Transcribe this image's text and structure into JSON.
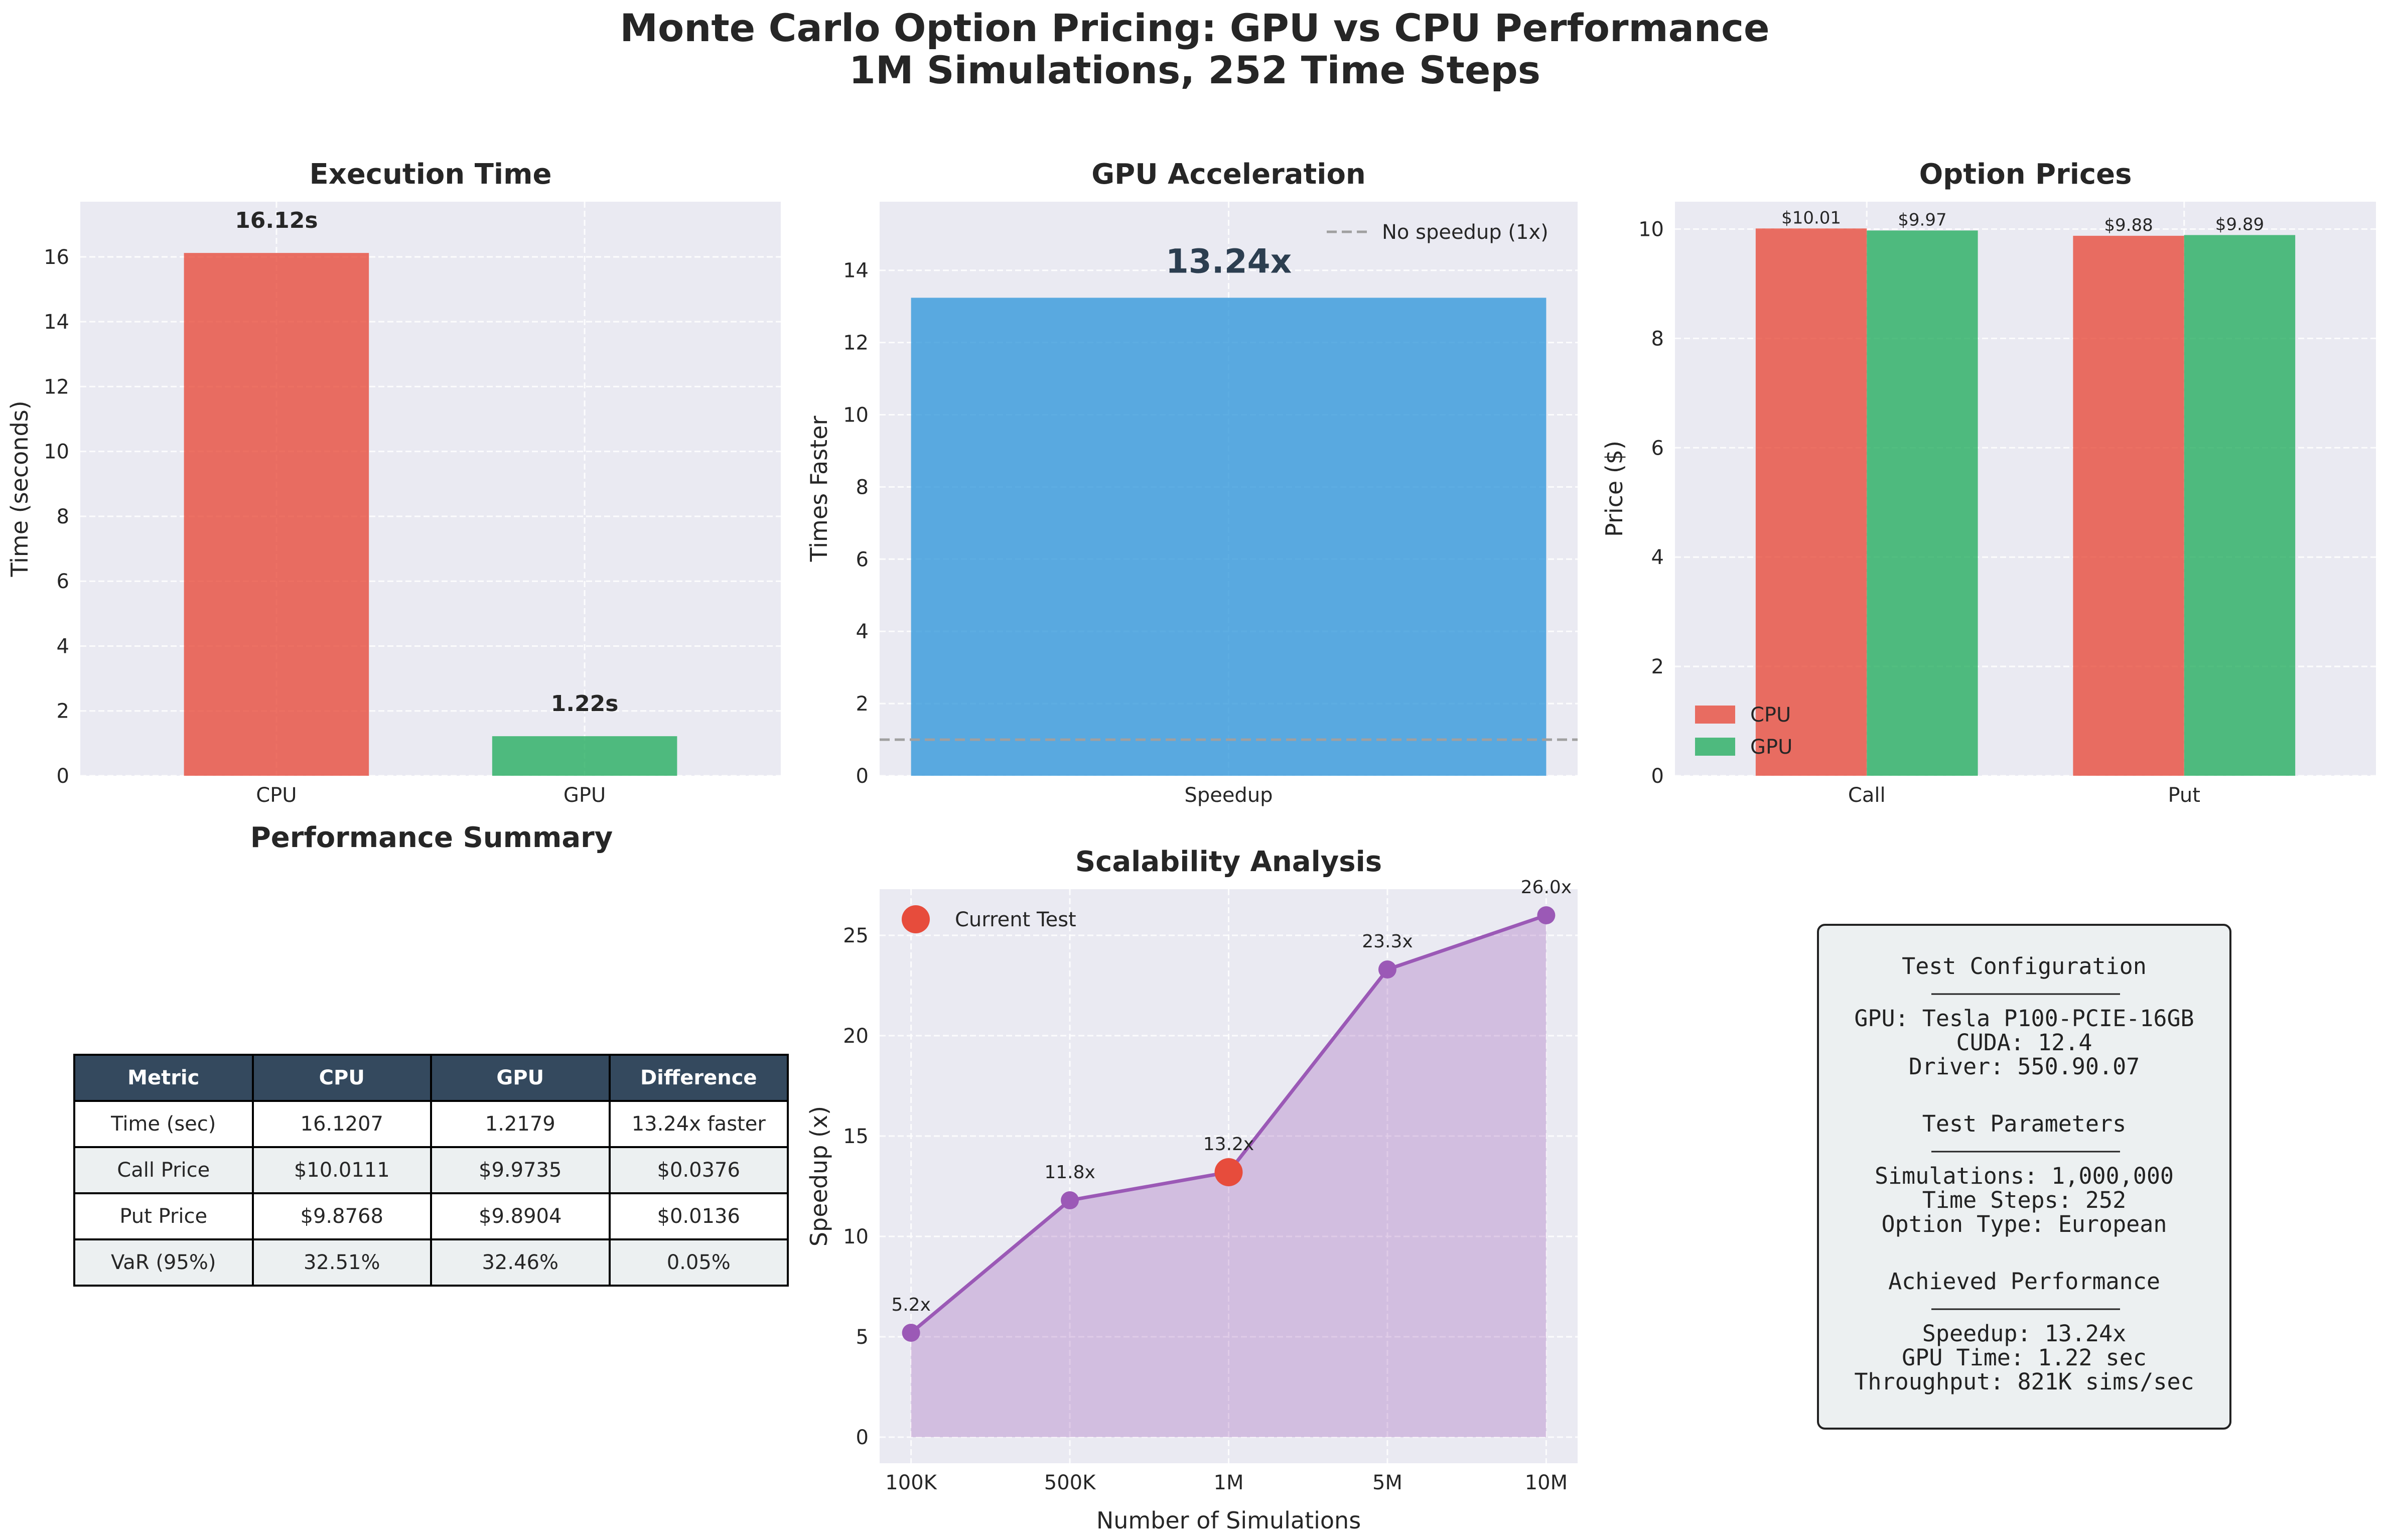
{
  "figure": {
    "title_line1": "Monte Carlo Option Pricing: GPU vs CPU Performance",
    "title_line2": "1M Simulations, 252 Time Steps"
  },
  "colors": {
    "cpu": "#e74c3c",
    "gpu": "#27ae60",
    "speedup": "#3498db",
    "scalability": "#9b59b6",
    "current": "#e74c3c",
    "panel_bg": "#eaeaf2",
    "table_header": "#34495e"
  },
  "chart_data": [
    {
      "id": "execution_time",
      "type": "bar",
      "title": "Execution Time",
      "xlabel": "",
      "ylabel": "Time (seconds)",
      "categories": [
        "CPU",
        "GPU"
      ],
      "values": [
        16.12,
        1.22
      ],
      "data_labels": [
        "16.12s",
        "1.22s"
      ],
      "colors": [
        "#e74c3c",
        "#27ae60"
      ],
      "ylim": [
        0,
        17.7
      ],
      "yticks": [
        0,
        2,
        4,
        6,
        8,
        10,
        12,
        14,
        16
      ],
      "grid": true
    },
    {
      "id": "gpu_acceleration",
      "type": "bar",
      "title": "GPU Acceleration",
      "xlabel": "",
      "ylabel": "Times Faster",
      "categories": [
        "Speedup"
      ],
      "values": [
        13.24
      ],
      "data_labels": [
        "13.24x"
      ],
      "reference_line": {
        "y": 1,
        "label": "No speedup (1x)"
      },
      "ylim": [
        0,
        15.9
      ],
      "yticks": [
        0,
        2,
        4,
        6,
        8,
        10,
        12,
        14
      ],
      "legend": "top-right",
      "grid": true
    },
    {
      "id": "option_prices",
      "type": "bar",
      "title": "Option Prices",
      "xlabel": "",
      "ylabel": "Price ($)",
      "categories": [
        "Call",
        "Put"
      ],
      "series": [
        {
          "name": "CPU",
          "values": [
            10.0111,
            9.8768
          ],
          "labels": [
            "$10.01",
            "$9.88"
          ]
        },
        {
          "name": "GPU",
          "values": [
            9.9735,
            9.8904
          ],
          "labels": [
            "$9.97",
            "$9.89"
          ]
        }
      ],
      "ylim": [
        0,
        10.5
      ],
      "yticks": [
        0,
        2,
        4,
        6,
        8,
        10
      ],
      "legend": "lower-left",
      "grid": true
    },
    {
      "id": "scalability",
      "type": "line",
      "title": "Scalability Analysis",
      "xlabel": "Number of Simulations",
      "ylabel": "Speedup (x)",
      "categories": [
        "100K",
        "500K",
        "1M",
        "5M",
        "10M"
      ],
      "values": [
        5.2,
        11.8,
        13.2,
        23.3,
        26.0
      ],
      "data_labels": [
        "5.2x",
        "11.8x",
        "13.2x",
        "23.3x",
        "26.0x"
      ],
      "highlight": {
        "index": 2,
        "name": "Current Test"
      },
      "ylim": [
        -1.3,
        27.3
      ],
      "yticks": [
        0,
        5,
        10,
        15,
        20,
        25
      ],
      "legend": "top-left",
      "grid": true
    }
  ],
  "summary": {
    "title": "Performance Summary",
    "headers": [
      "Metric",
      "CPU",
      "GPU",
      "Difference"
    ],
    "rows": [
      [
        "Time (sec)",
        "16.1207",
        "1.2179",
        "13.24x faster"
      ],
      [
        "Call Price",
        "$10.0111",
        "$9.9735",
        "$0.0376"
      ],
      [
        "Put Price",
        "$9.8768",
        "$9.8904",
        "$0.0136"
      ],
      [
        "VaR (95%)",
        "32.51%",
        "32.46%",
        "0.05%"
      ]
    ]
  },
  "config": {
    "sections": [
      {
        "heading": "Test Configuration",
        "lines": [
          "GPU: Tesla P100-PCIE-16GB",
          "CUDA: 12.4",
          "Driver: 550.90.07"
        ]
      },
      {
        "heading": "Test Parameters",
        "lines": [
          "Simulations: 1,000,000",
          "Time Steps: 252",
          "Option Type: European"
        ]
      },
      {
        "heading": "Achieved Performance",
        "lines": [
          "Speedup: 13.24x",
          "GPU Time: 1.22 sec",
          "Throughput: 821K sims/sec"
        ]
      }
    ]
  }
}
